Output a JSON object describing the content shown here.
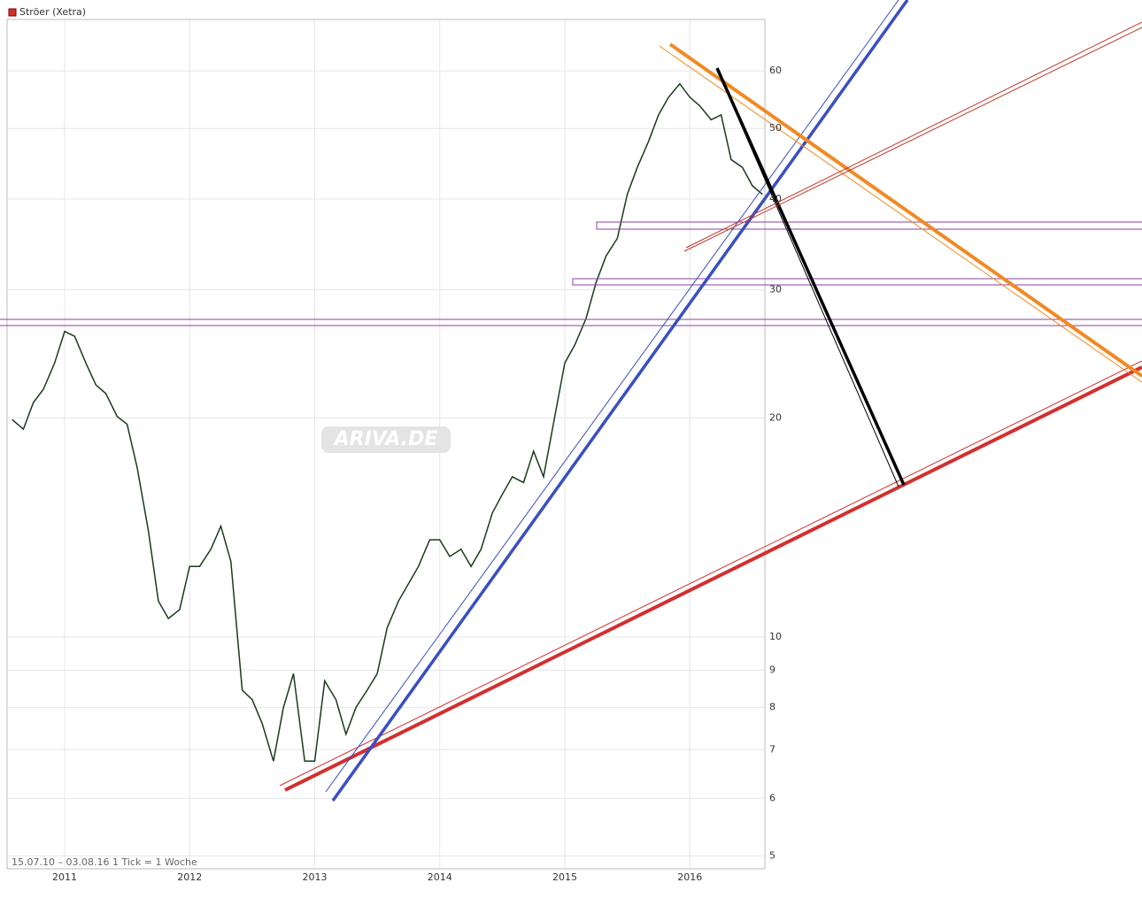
{
  "chart_data": {
    "type": "line",
    "legend": "Ströer (Xetra)",
    "legend_color": "#d32f2f",
    "footer": "15.07.10 – 03.08.16   1 Tick = 1 Woche",
    "watermark": "ARIVA.DE",
    "log_scale": true,
    "grid": true,
    "xlim": [
      2010.54,
      2016.6
    ],
    "xticks": [
      2011,
      2012,
      2013,
      2014,
      2015,
      2016
    ],
    "ylim": [
      4.8,
      70.6
    ],
    "yticks": [
      5,
      6,
      7,
      8,
      9,
      10,
      20,
      30,
      40,
      50,
      60
    ],
    "x": [
      2010.58,
      2010.67,
      2010.75,
      2010.83,
      2010.92,
      2011.0,
      2011.08,
      2011.17,
      2011.25,
      2011.33,
      2011.42,
      2011.5,
      2011.58,
      2011.67,
      2011.75,
      2011.83,
      2011.92,
      2012.0,
      2012.08,
      2012.17,
      2012.25,
      2012.33,
      2012.42,
      2012.5,
      2012.58,
      2012.67,
      2012.75,
      2012.83,
      2012.92,
      2013.0,
      2013.08,
      2013.17,
      2013.25,
      2013.33,
      2013.42,
      2013.5,
      2013.58,
      2013.67,
      2013.83,
      2013.92,
      2014.0,
      2014.08,
      2014.17,
      2014.25,
      2014.33,
      2014.42,
      2014.5,
      2014.58,
      2014.67,
      2014.75,
      2014.83,
      2014.92,
      2015.0,
      2015.08,
      2015.17,
      2015.25,
      2015.33,
      2015.42,
      2015.5,
      2015.58,
      2015.67,
      2015.75,
      2015.83,
      2015.92,
      2016.0,
      2016.08,
      2016.17,
      2016.25,
      2016.33,
      2016.42,
      2016.5,
      2016.58
    ],
    "series": [
      {
        "name": "Ströer (Xetra)",
        "color": "#1a3a1a",
        "values": [
          19.9,
          19.3,
          21.0,
          21.9,
          23.8,
          26.3,
          25.9,
          23.8,
          22.2,
          21.6,
          20.1,
          19.6,
          17.1,
          14.0,
          11.2,
          10.6,
          10.9,
          12.5,
          12.5,
          13.2,
          14.2,
          12.7,
          8.45,
          8.2,
          7.6,
          6.75,
          8.0,
          8.9,
          6.75,
          6.75,
          8.7,
          8.2,
          7.35,
          8.0,
          8.45,
          8.9,
          10.3,
          11.2,
          12.5,
          13.6,
          13.6,
          12.9,
          13.2,
          12.5,
          13.2,
          14.8,
          15.7,
          16.6,
          16.3,
          18.0,
          16.6,
          20.1,
          23.8,
          25.2,
          27.4,
          30.7,
          33.4,
          35.3,
          40.6,
          44.2,
          48.0,
          52.2,
          55.2,
          57.6,
          55.2,
          53.7,
          51.4,
          52.2,
          45.3,
          44.2,
          41.7,
          40.6
        ]
      }
    ]
  }
}
